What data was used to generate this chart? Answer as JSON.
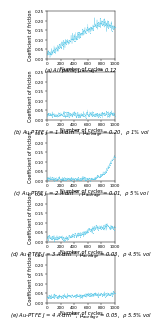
{
  "panels": [
    {
      "data_type": "rising",
      "caption": "(a) All parts, $\\mu_{average}$ = 0.12",
      "ylim": [
        0,
        0.25
      ],
      "yticks": [
        0.0,
        0.05,
        0.1,
        0.15,
        0.2,
        0.25
      ]
    },
    {
      "data_type": "flat_low",
      "caption": "(b) Au-PTFE $J$ = 1 A$\\cdot$dm$^{-2}$, $\\mu_{average}$ = 0.20,  $\\rho$ 1% vol",
      "ylim": [
        0,
        0.25
      ],
      "yticks": [
        0.0,
        0.05,
        0.1,
        0.15,
        0.2,
        0.25
      ]
    },
    {
      "data_type": "flat_rise_end",
      "caption": "(c) Au-PTFE $J$ = 2 A$\\cdot$dm$^{-2}$, $\\mu_{average}$ = 0.01,  $\\rho$ 5% vol",
      "ylim": [
        0,
        0.25
      ],
      "yticks": [
        0.0,
        0.05,
        0.1,
        0.15,
        0.2,
        0.25
      ]
    },
    {
      "data_type": "flat_mid_rise",
      "caption": "(d) Au-PTFE $J$ = 3 A$\\cdot$dm$^{-2}$, $\\mu_{average}$ = 0.03,  $\\rho$ 4.5% vol",
      "ylim": [
        0,
        0.25
      ],
      "yticks": [
        0.0,
        0.05,
        0.1,
        0.15,
        0.2,
        0.25
      ]
    },
    {
      "data_type": "flat_very_low",
      "caption": "(e) Au-PTFE $J$ = 4 A$\\cdot$dm$^{-2}$, $\\mu_{average}$ = 0.05,  $\\rho$ 5.5% vol",
      "ylim": [
        0,
        0.25
      ],
      "yticks": [
        0.0,
        0.05,
        0.1,
        0.15,
        0.2,
        0.25
      ]
    }
  ],
  "xlabel": "Number of cycles",
  "ylabel": "Coefficient of friction",
  "xlim": [
    0,
    1000
  ],
  "xticks": [
    0,
    200,
    400,
    600,
    800,
    1000
  ],
  "line_color": "#5bc8e8",
  "scatter_color": "#5bc8e8",
  "background_color": "#ffffff",
  "caption_fontsize": 3.8,
  "axis_label_fontsize": 3.5,
  "tick_fontsize": 3.0
}
